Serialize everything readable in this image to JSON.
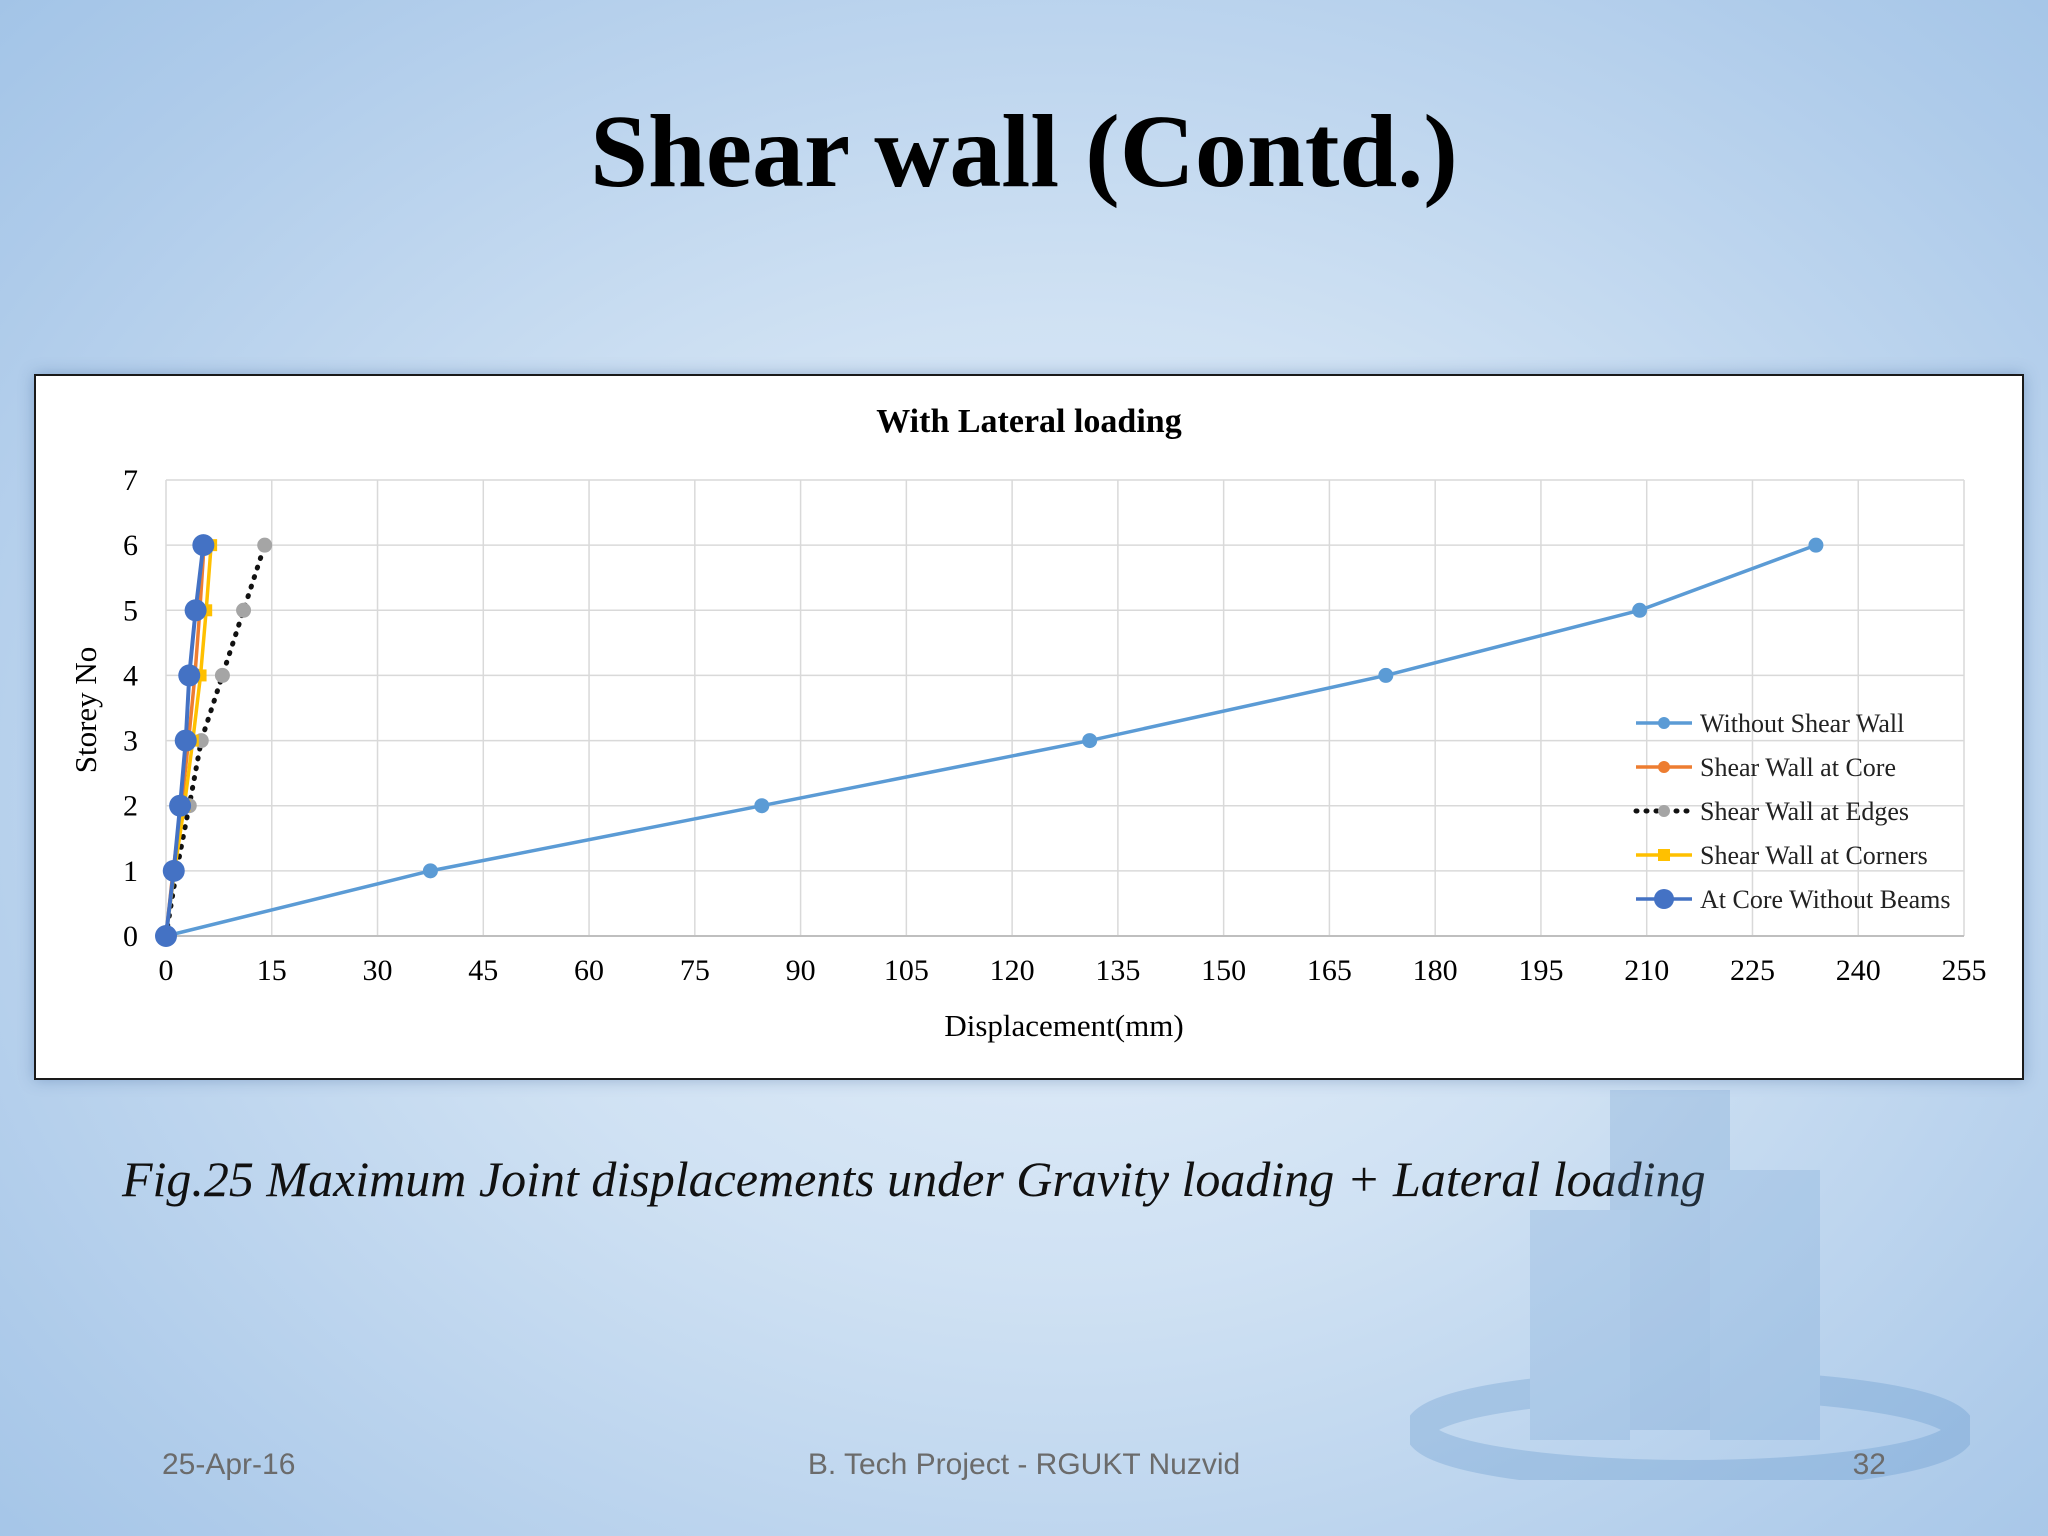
{
  "slide": {
    "title": "Shear wall (Contd.)",
    "caption": "Fig.25  Maximum Joint displacements under Gravity loading + Lateral loading",
    "footer_date": "25-Apr-16",
    "footer_center": "B. Tech Project - RGUKT Nuzvid",
    "page_number": "32"
  },
  "chart_data": {
    "type": "line",
    "title": "With Lateral loading",
    "xlabel": "Displacement(mm)",
    "ylabel": "Storey No",
    "xlim": [
      0,
      255
    ],
    "ylim": [
      0,
      7
    ],
    "xticks": [
      0,
      15,
      30,
      45,
      60,
      75,
      90,
      105,
      120,
      135,
      150,
      165,
      180,
      195,
      210,
      225,
      240,
      255
    ],
    "yticks": [
      0,
      1,
      2,
      3,
      4,
      5,
      6,
      7
    ],
    "grid": true,
    "legend_position": "right",
    "series": [
      {
        "name": "Without Shear Wall",
        "color": "#5b9bd5",
        "style": "solid-small-marker",
        "x": [
          0,
          37.5,
          84.5,
          131,
          173,
          209,
          234
        ],
        "y": [
          0,
          1,
          2,
          3,
          4,
          5,
          6
        ]
      },
      {
        "name": "Shear Wall at Core",
        "color": "#ed7d31",
        "style": "solid-small-marker",
        "x": [
          0,
          1,
          2.2,
          3.2,
          4.1,
          4.8,
          5.4
        ],
        "y": [
          0,
          1,
          2,
          3,
          4,
          5,
          6
        ]
      },
      {
        "name": "Shear Wall at Edges",
        "color": "#a5a5a5",
        "style": "dotted-black",
        "x": [
          0,
          1.5,
          3.3,
          5,
          8,
          11,
          14
        ],
        "y": [
          0,
          1,
          2,
          3,
          4,
          5,
          6
        ]
      },
      {
        "name": "Shear Wall at Corners",
        "color": "#ffc000",
        "style": "solid-square-marker",
        "x": [
          0,
          1.2,
          2.6,
          3.8,
          4.9,
          5.7,
          6.4
        ],
        "y": [
          0,
          1,
          2,
          3,
          4,
          5,
          6
        ]
      },
      {
        "name": "At Core Without Beams",
        "color": "#4472c4",
        "style": "solid-large-marker",
        "x": [
          0,
          1.1,
          2.0,
          2.8,
          3.3,
          4.2,
          5.3
        ],
        "y": [
          0,
          1,
          2,
          3,
          4,
          5,
          6
        ]
      }
    ]
  }
}
